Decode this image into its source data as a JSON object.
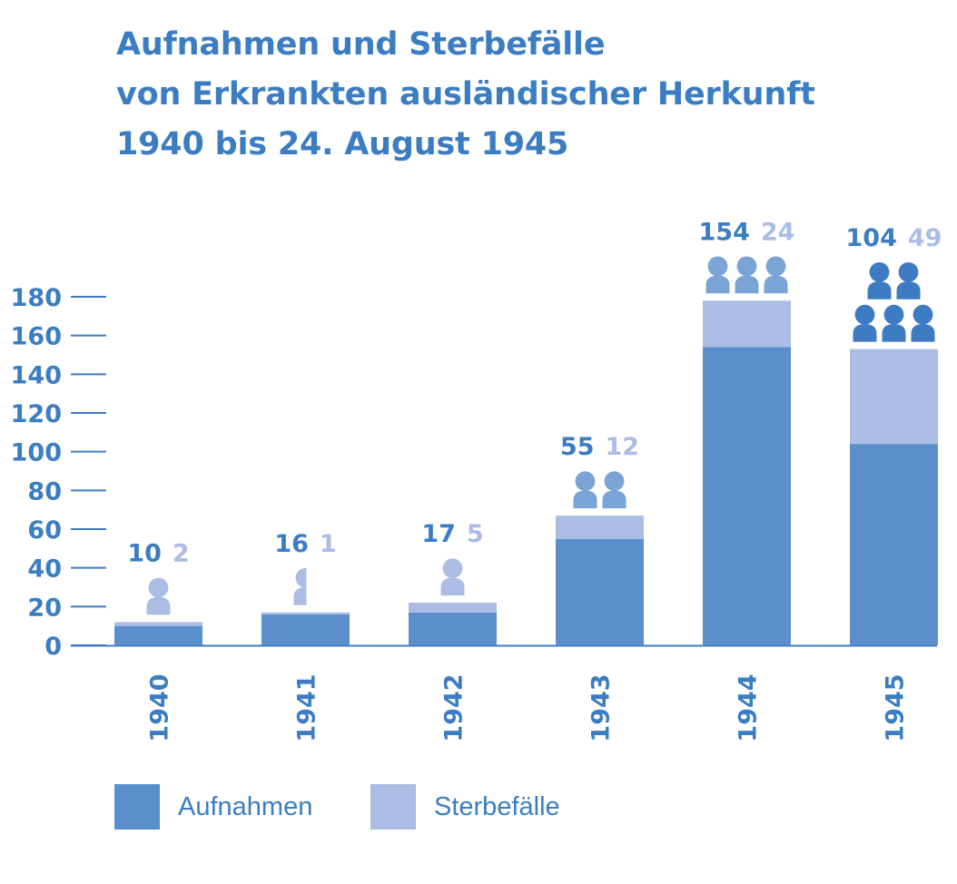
{
  "title_lines": [
    "Aufnahmen und Sterbefälle",
    "von Erkrankten ausländischer Herkunft",
    "1940 bis 24. August 1945"
  ],
  "colors": {
    "text": "#3b7dc2",
    "aufnahmen": "#5b8fcc",
    "sterbefaelle": "#abbde4",
    "figure_light": "#abbde4",
    "figure_medium": "#7aa3d6",
    "figure_dark": "#3d7bc3"
  },
  "legend": {
    "aufnahmen_label": "Aufnahmen",
    "sterbefaelle_label": "Sterbefälle"
  },
  "chart_data": {
    "type": "bar",
    "stacked": true,
    "categories": [
      "1940",
      "1941",
      "1942",
      "1943",
      "1944",
      "1945"
    ],
    "series": [
      {
        "name": "Aufnahmen",
        "values": [
          10,
          16,
          17,
          55,
          154,
          104
        ]
      },
      {
        "name": "Sterbefälle",
        "values": [
          2,
          1,
          5,
          12,
          24,
          49
        ]
      }
    ],
    "value_labels": {
      "aufnahmen": [
        "10",
        "16",
        "17",
        "55",
        "154",
        "104"
      ],
      "sterbefaelle": [
        "2",
        "1",
        "5",
        "12",
        "24",
        "49"
      ]
    },
    "person_icons": {
      "counts": [
        1,
        0.5,
        1,
        2,
        3,
        5
      ],
      "color_keys": [
        "figure_light",
        "figure_light",
        "figure_light",
        "figure_medium",
        "figure_medium",
        "figure_dark"
      ]
    },
    "ylim": [
      0,
      180
    ],
    "y_ticks": [
      "0",
      "20",
      "40",
      "60",
      "80",
      "100",
      "120",
      "140",
      "160",
      "180"
    ],
    "grid": false,
    "legend_position": "bottom-left"
  }
}
